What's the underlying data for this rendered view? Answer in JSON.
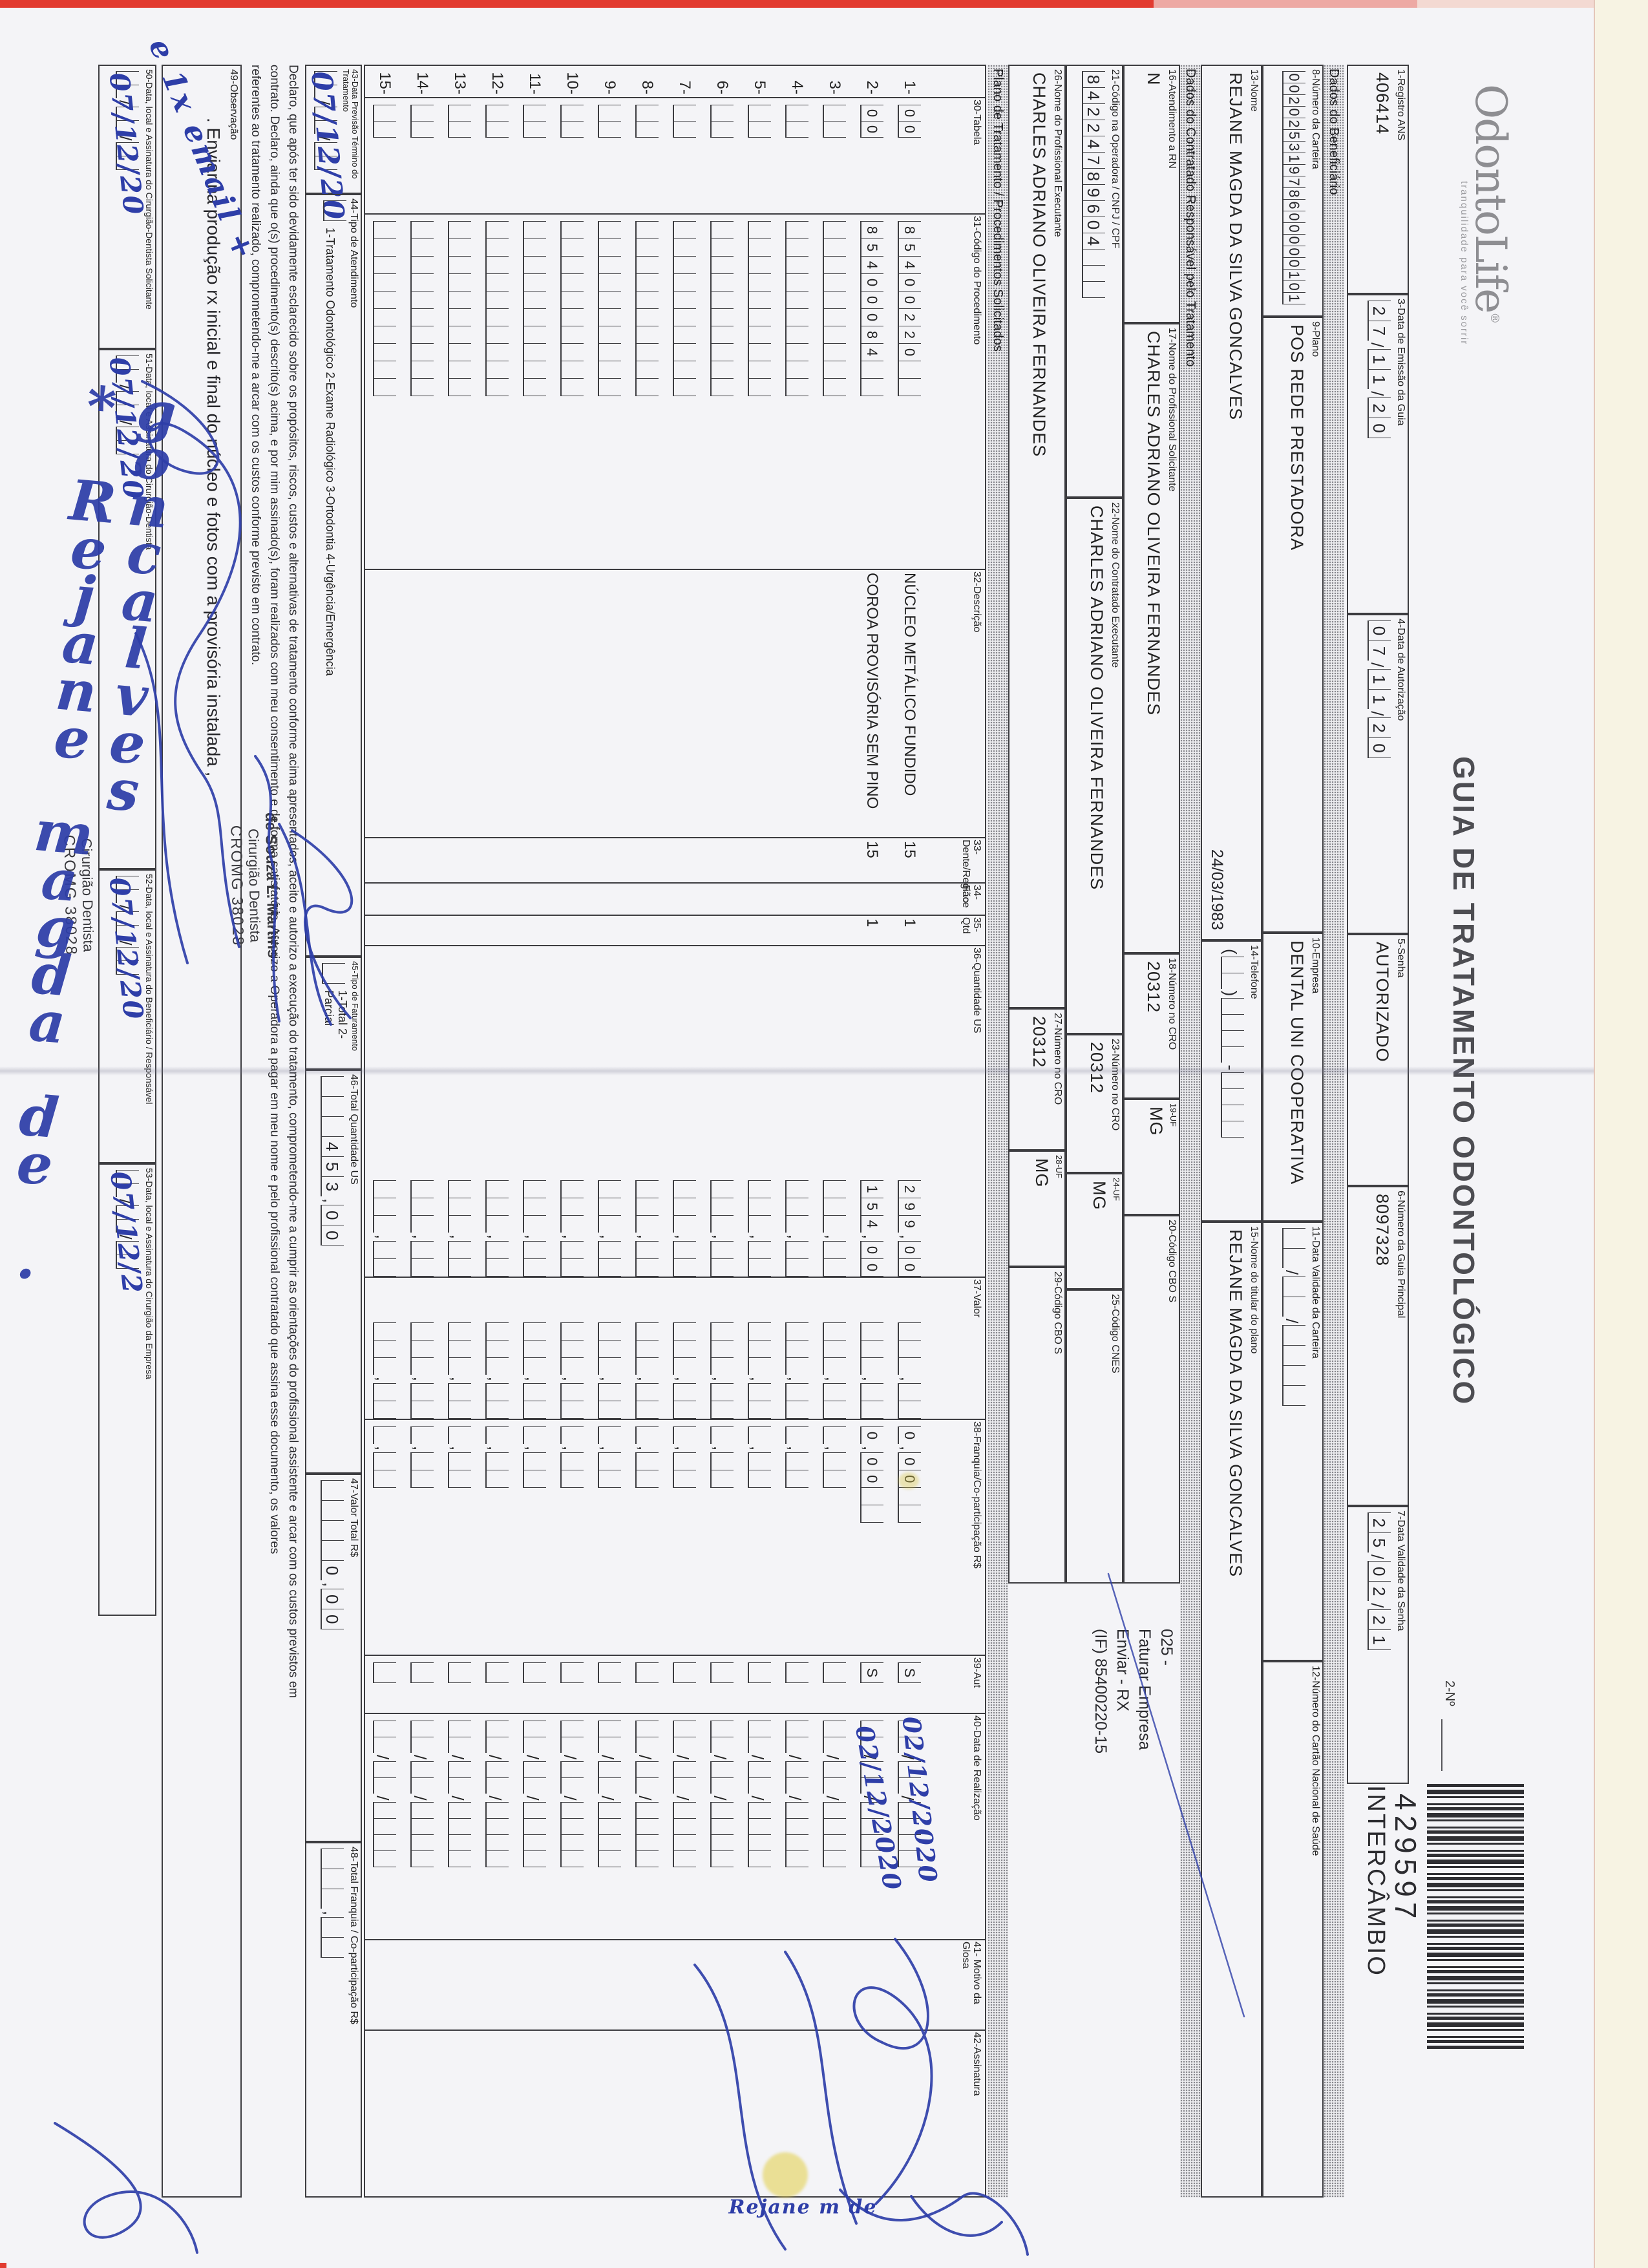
{
  "colors": {
    "ink_blue": "#2e3ea8",
    "paper": "#f4f4f7",
    "scanner_edge_red": "#e23b30",
    "bar_grey": "#ececef"
  },
  "masthead": {
    "logo": "OdontoLife",
    "logo_reg": "®",
    "tagline": "tranquilidade para você sorrir",
    "title": "GUIA DE TRATAMENTO ODONTOLÓGICO",
    "numero_label": "2-Nº",
    "barcode_number": "429597",
    "barcode_caption": "INTERCÂMBIO"
  },
  "sections": {
    "beneficiario": "Dados do Beneficiário",
    "contratado": "Dados do Contratado Responsável pelo Tratamento",
    "plano": "Plano de Tratamento / Procedimentos Solicitados"
  },
  "fields": {
    "f1": {
      "label": "1-Registro ANS",
      "value": "406414"
    },
    "f3": {
      "label": "3-Data de Emissão da Guia",
      "value": "27/11/20"
    },
    "f4": {
      "label": "4-Data de Autorização",
      "value": "07/11/20"
    },
    "f5": {
      "label": "5-Senha",
      "value": "AUTORIZADO"
    },
    "f6": {
      "label": "6-Número da Guia Principal",
      "value": "8097328"
    },
    "f7": {
      "label": "7-Data Validade da Senha",
      "value": "25/02/21"
    },
    "f8": {
      "label": "8-Número da Carteira",
      "value": "00202531978600000101"
    },
    "f9": {
      "label": "9-Plano",
      "value": "POS REDE PRESTADORA"
    },
    "f10": {
      "label": "10-Empresa",
      "value": "DENTAL UNI COOPERATIVA"
    },
    "f11": {
      "label": "11-Data Validade da Carteira",
      "value": "  /  /    "
    },
    "f12": {
      "label": "12-Número do Cartão Nacional de Saúde",
      "value": ""
    },
    "f13": {
      "label": "13-Nome",
      "value": "REJANE MAGDA DA SILVA GONCALVES",
      "value2": "24/03/1983"
    },
    "f14": {
      "label": "14-Telefone",
      "value": "(  )    -    "
    },
    "f15": {
      "label": "15-Nome do titular do plano",
      "value": "REJANE MAGDA DA SILVA GONCALVES"
    },
    "f16": {
      "label": "16-Atendimento a RN",
      "value": "N"
    },
    "f17": {
      "label": "17-Nome do Profissional Solicitante",
      "value": "CHARLES ADRIANO OLIVEIRA FERNANDES"
    },
    "f18": {
      "label": "18-Número no CRO",
      "value": "20312"
    },
    "f19": {
      "label": "19-UF",
      "value": "MG"
    },
    "f20": {
      "label": "20-Código CBO S",
      "value": ""
    },
    "f21": {
      "label": "21-Código na Operadora / CNPJ / CPF",
      "value": "84224789604   "
    },
    "f22": {
      "label": "22-Nome do Contratado Executante",
      "value": "CHARLES ADRIANO OLIVEIRA FERNANDES"
    },
    "f23": {
      "label": "23-Número no CRO",
      "value": "20312"
    },
    "f24": {
      "label": "24-UF",
      "value": "MG"
    },
    "f25": {
      "label": "25-Código CNES",
      "value": ""
    },
    "f26": {
      "label": "26-Nome do Profissional Executante",
      "value": "CHARLES ADRIANO OLIVEIRA FERNANDES"
    },
    "f27": {
      "label": "27-Número no CRO",
      "value": "20312"
    },
    "f28": {
      "label": "28-UF",
      "value": "MG"
    },
    "f29": {
      "label": "29-Código CBO S",
      "value": ""
    },
    "f43": {
      "label": "43-Data Previsão Término do Tratamento",
      "value": "  /  /  "
    },
    "f44": {
      "label": "44-Tipo de Atendimento",
      "value": " ",
      "options": "1-Tratamento Odontológico   2-Exame Radiológico   3-Ortodontia   4-Urgência/Emergência"
    },
    "f45": {
      "label": "45-Tipo de Faturamento",
      "value": " ",
      "options": "1-Total  2-Parcial"
    },
    "f46": {
      "label": "46-Total Quantidade US",
      "value": "   453,00"
    },
    "f47": {
      "label": "47-Valor Total R$",
      "value": "    0,00"
    },
    "f48": {
      "label": "48-Total Franquia / Co-participação R$",
      "value": "   ,  "
    }
  },
  "note": {
    "lines": [
      "025 -",
      "Faturar Empresa",
      "Enviar - RX",
      "(IF) 85400220-15"
    ]
  },
  "table": {
    "headers": {
      "c30": "30-Tabela",
      "c31": "31-Código do Procedimento",
      "c32": "32-Descrição",
      "c33": "33-Dente/Região",
      "c34": "34-Face",
      "c35": "35-Qtd",
      "c36": "36-Quantidade US",
      "c37": "37-Valor",
      "c38": "38-Franquia/Co-participação R$",
      "c39": "39-Aut",
      "c40": "40-Data de Realização",
      "c41": "41- Motivo da Glosa",
      "c42": "42-Assinatura"
    },
    "rows": [
      {
        "num": "1-",
        "tabela": "00",
        "codigo": "85400220  ",
        "descricao": "NÚCLEO METÁLICO FUNDIDO",
        "dente": "15",
        "face": "",
        "qtd": "1",
        "us": "299,00",
        "valor": "   ,  ",
        "franquia": "0,00  ",
        "aut": "S",
        "data": "  /  /    ",
        "hand_data": "02/12/2020"
      },
      {
        "num": "2-",
        "tabela": "00",
        "codigo": "85400084  ",
        "descricao": "COROA PROVISÓRIA SEM PINO",
        "dente": "15",
        "face": "",
        "qtd": "1",
        "us": "154,00",
        "valor": "   ,  ",
        "franquia": "0,00  ",
        "aut": "S",
        "data": "  /  /    ",
        "hand_data": "02/12/2020"
      }
    ],
    "empty_row": {
      "tabela": "  ",
      "codigo": "          ",
      "descricao": "",
      "dente": "",
      "face": "",
      "qtd": "",
      "us": "   ,  ",
      "valor": "   ,  ",
      "franquia": " ,  ",
      "aut": " ",
      "data": "  /  /    "
    },
    "empty_row_nums": [
      "3-",
      "4-",
      "5-",
      "6-",
      "7-",
      "8-",
      "9-",
      "10-",
      "11-",
      "12-",
      "13-",
      "14-",
      "15-"
    ]
  },
  "declaration": {
    "lines": [
      "Declaro, que após ter sido devidamente esclarecido sobre os propósitos, riscos, custos e alternativas de tratamento conforme acima apresentados, aceito e autorizo a execução do tratamento, comprometendo-me a cumprir as orientações do profissional assistente e arcar com os custos previstos em",
      "contrato. Declaro, ainda que o(s) procedimento(s) descrito(s) acima, e por mim assinado(s), foram realizados com meu consentimento e de forma satisfatória. Autorizo a Operadora a pagar em meu nome e pelo profissional contratado que assina esse documento, os valores",
      "referentes ao tratamento realizado, comprometendo-me a arcar com os custos conforme previsto em contrato."
    ]
  },
  "observacao": {
    "label": "49-Observação",
    "text": ". Enviar na produção rx inicial e final do núcleo e fotos com a provisória instalada ,"
  },
  "signatures": [
    {
      "label": "50-Data, local e Assinatura do Cirurgião-Dentista Solicitante",
      "cells": "  /  /  ",
      "hand": "07/12/20"
    },
    {
      "label": "51-Data, local e Assinatura do Cirurgião-Dentista",
      "cells": "  /  /  ",
      "hand": "07/12/20"
    },
    {
      "label": "52-Data, local e Assinatura do Beneficiário / Responsável",
      "cells": "  /  /  ",
      "hand": "07/12/20"
    },
    {
      "label": "53-Data, local e Assinatura do Cirurgião da Empresa",
      "cells": "  /  /  ",
      "hand": "07/12/2"
    }
  ],
  "stamps": {
    "dentist": [
      "de Souza L. Martins",
      "Cirurgião Dentista",
      "CROMG 38028"
    ],
    "second": [
      "Cirurgião Dentista",
      "CROMG 38028"
    ]
  },
  "handwriting": {
    "margin_note": "e 1x email +",
    "signature_bottom": "* Rejane magda de . goncalves",
    "date_43": "07/12/20",
    "sig_rows_text": "Rejane m de"
  }
}
